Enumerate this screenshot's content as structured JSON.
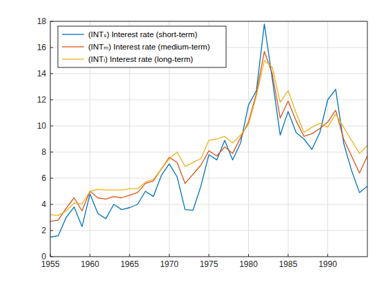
{
  "chart_data": {
    "type": "line",
    "x": [
      1955,
      1956,
      1957,
      1958,
      1959,
      1960,
      1961,
      1962,
      1963,
      1964,
      1965,
      1966,
      1967,
      1968,
      1969,
      1970,
      1971,
      1972,
      1973,
      1974,
      1975,
      1976,
      1977,
      1978,
      1979,
      1980,
      1981,
      1982,
      1983,
      1984,
      1985,
      1986,
      1987,
      1988,
      1989,
      1990,
      1991,
      1992,
      1993,
      1994,
      1995
    ],
    "series": [
      {
        "name": "(INTₛ) Interest rate (short-term)",
        "color": "#0072bd",
        "values": [
          1.5,
          1.6,
          3.0,
          3.8,
          2.3,
          4.8,
          3.3,
          2.9,
          4.0,
          3.6,
          3.75,
          4.0,
          5.0,
          4.6,
          6.2,
          7.1,
          6.1,
          3.6,
          3.55,
          5.4,
          7.8,
          7.4,
          8.9,
          7.4,
          8.7,
          11.6,
          12.7,
          17.8,
          13.6,
          9.3,
          11.1,
          9.5,
          9.0,
          8.2,
          9.5,
          12.0,
          12.8,
          8.7,
          6.6,
          4.9,
          5.4
        ]
      },
      {
        "name": "(INTₘ) Interest rate (medium-term)",
        "color": "#d95319",
        "values": [
          2.7,
          2.8,
          3.7,
          4.5,
          3.5,
          5.0,
          4.5,
          4.4,
          4.6,
          4.5,
          4.7,
          4.9,
          5.6,
          5.8,
          6.7,
          7.6,
          7.2,
          5.6,
          6.3,
          7.0,
          8.1,
          7.7,
          8.4,
          7.9,
          9.1,
          10.3,
          12.5,
          15.7,
          14.0,
          10.6,
          11.9,
          10.4,
          9.2,
          9.4,
          9.8,
          10.3,
          11.2,
          9.0,
          7.7,
          6.4,
          7.7
        ]
      },
      {
        "name": "(INTₗ) Interest rate (long-term)",
        "color": "#edb120",
        "values": [
          3.2,
          3.15,
          3.5,
          4.1,
          4.05,
          5.0,
          5.15,
          5.1,
          5.1,
          5.1,
          5.2,
          5.2,
          5.7,
          5.9,
          6.7,
          7.5,
          8.0,
          6.9,
          7.2,
          7.5,
          8.9,
          9.0,
          9.2,
          8.7,
          9.3,
          10.1,
          12.3,
          15.0,
          14.5,
          11.8,
          12.7,
          11.0,
          9.5,
          9.9,
          10.2,
          9.9,
          10.9,
          9.9,
          8.9,
          7.9,
          8.5
        ]
      }
    ],
    "xlim": [
      1955,
      1995
    ],
    "xticks": [
      1955,
      1960,
      1965,
      1970,
      1975,
      1980,
      1985,
      1990
    ],
    "ylim": [
      0,
      18
    ],
    "yticks": [
      0,
      2,
      4,
      6,
      8,
      10,
      12,
      14,
      16,
      18
    ],
    "grid": true,
    "legend": "northwest"
  }
}
